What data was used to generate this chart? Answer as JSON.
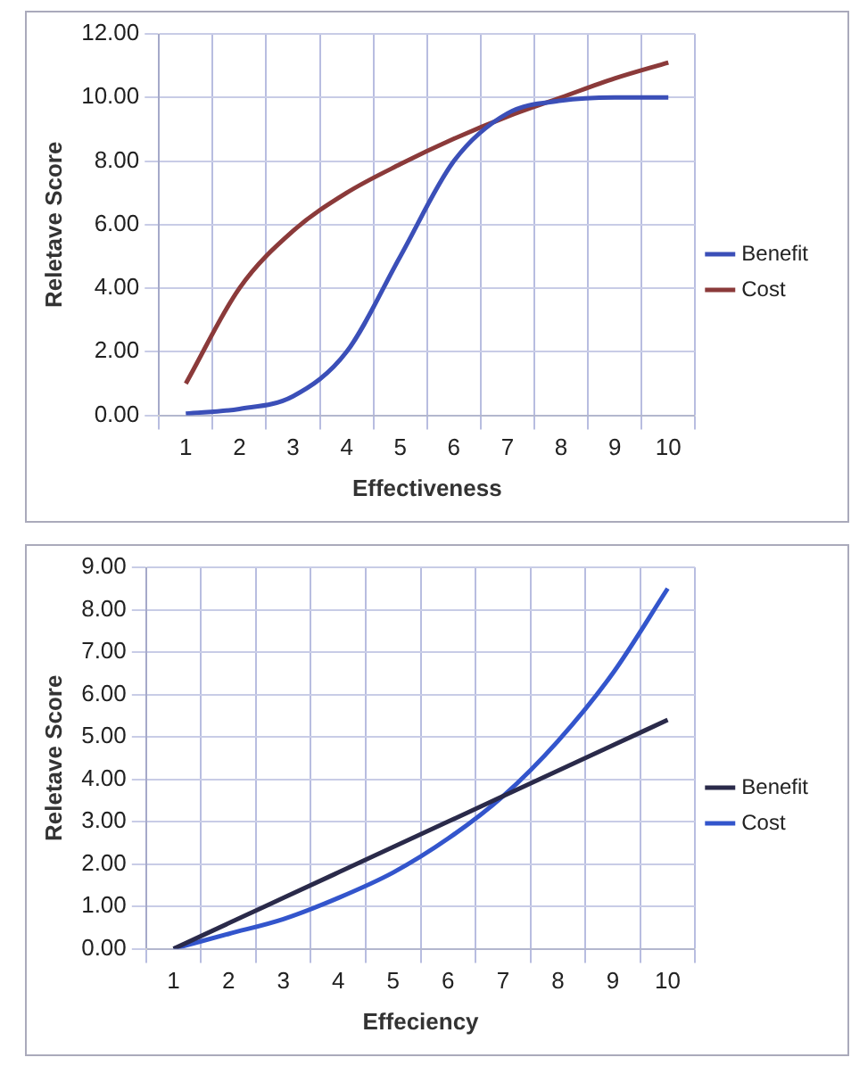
{
  "chart_data": [
    {
      "type": "line",
      "xlabel": "Effectiveness",
      "ylabel": "Reletave Score",
      "categories": [
        "1",
        "2",
        "3",
        "4",
        "5",
        "6",
        "7",
        "8",
        "9",
        "10"
      ],
      "series": [
        {
          "name": "Benefit",
          "color": "#3b4fb8",
          "values": [
            0.05,
            0.2,
            0.6,
            2,
            5,
            8,
            9.5,
            9.9,
            10,
            10
          ]
        },
        {
          "name": "Cost",
          "color": "#8b3a3a",
          "values": [
            1,
            4,
            5.8,
            7,
            7.9,
            8.7,
            9.4,
            10,
            10.6,
            11.1
          ]
        }
      ],
      "ylim": [
        0,
        12
      ],
      "yticks": [
        {
          "value": 0,
          "label": "0.00"
        },
        {
          "value": 2,
          "label": "2.00"
        },
        {
          "value": 4,
          "label": "4.00"
        },
        {
          "value": 6,
          "label": "6.00"
        },
        {
          "value": 8,
          "label": "8.00"
        },
        {
          "value": 10,
          "label": "10.00"
        },
        {
          "value": 12,
          "label": "12.00"
        }
      ],
      "grid": true,
      "legend": "right",
      "marker": "none",
      "line_style": "solid"
    },
    {
      "type": "line",
      "xlabel": "Effeciency",
      "ylabel": "Reletave Score",
      "categories": [
        "1",
        "2",
        "3",
        "4",
        "5",
        "6",
        "7",
        "8",
        "9",
        "10"
      ],
      "series": [
        {
          "name": "Benefit",
          "color": "#2a2a4a",
          "values": [
            0,
            0.6,
            1.2,
            1.8,
            2.4,
            3.0,
            3.6,
            4.2,
            4.8,
            5.4
          ]
        },
        {
          "name": "Cost",
          "color": "#3355cc",
          "values": [
            0,
            0.35,
            0.7,
            1.2,
            1.8,
            2.6,
            3.6,
            4.9,
            6.5,
            8.5
          ]
        }
      ],
      "ylim": [
        0,
        9
      ],
      "yticks": [
        {
          "value": 0,
          "label": "0.00"
        },
        {
          "value": 1,
          "label": "1.00"
        },
        {
          "value": 2,
          "label": "2.00"
        },
        {
          "value": 3,
          "label": "3.00"
        },
        {
          "value": 4,
          "label": "4.00"
        },
        {
          "value": 5,
          "label": "5.00"
        },
        {
          "value": 6,
          "label": "6.00"
        },
        {
          "value": 7,
          "label": "7.00"
        },
        {
          "value": 8,
          "label": "8.00"
        },
        {
          "value": 9,
          "label": "9.00"
        }
      ],
      "grid": true,
      "legend": "right",
      "marker": "none",
      "line_style": "solid"
    }
  ]
}
